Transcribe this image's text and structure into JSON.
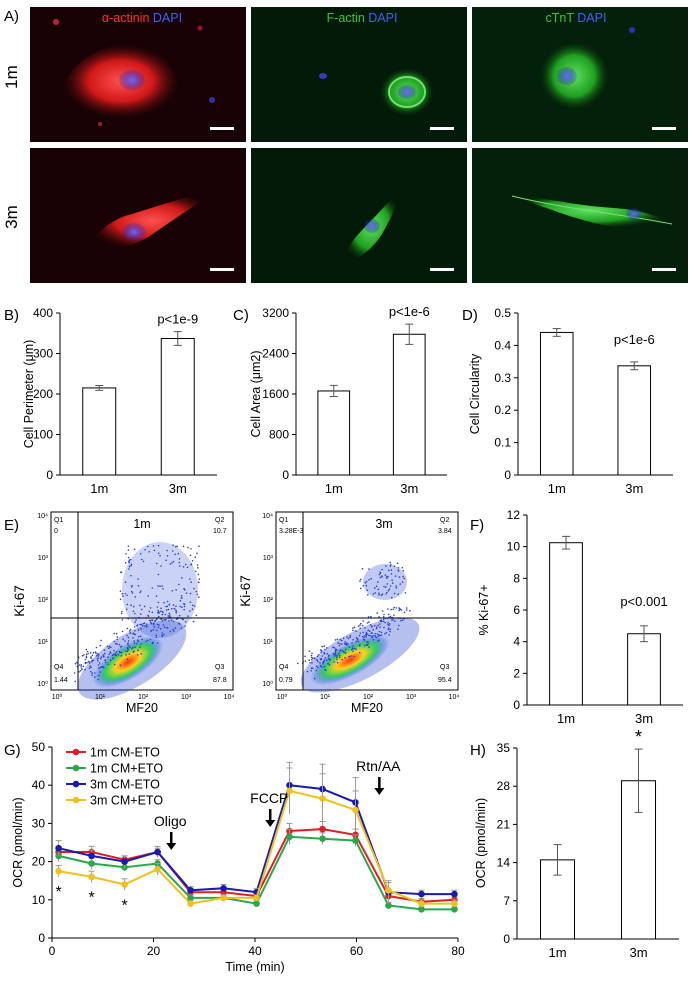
{
  "panel_A": {
    "label": "A)",
    "row_labels": [
      "1m",
      "3m"
    ],
    "columns": [
      {
        "stain": "α-actinin",
        "stain_color": "#ff3030",
        "counter": "DAPI",
        "counter_color": "#4060ff"
      },
      {
        "stain": "F-actin",
        "stain_color": "#39c43a",
        "counter": "DAPI",
        "counter_color": "#4060ff"
      },
      {
        "stain": "cTnT",
        "stain_color": "#39c43a",
        "counter": "DAPI",
        "counter_color": "#4060ff"
      }
    ]
  },
  "panel_labels": {
    "B": "B)",
    "C": "C)",
    "D": "D)",
    "E": "E)",
    "F": "F)",
    "G": "G)",
    "H": "H)"
  },
  "flow": {
    "plots": [
      {
        "title": "1m",
        "q1_label": "Q1",
        "q1": "0",
        "q2_label": "Q2",
        "q2": "10.7",
        "q3_label": "Q3",
        "q3": "87.8",
        "q4_label": "Q4",
        "q4": "1.44"
      },
      {
        "title": "3m",
        "q1_label": "Q1",
        "q1": "3.28E-3",
        "q2_label": "Q2",
        "q2": "3.84",
        "q3_label": "Q3",
        "q3": "95.4",
        "q4_label": "Q4",
        "q4": "0.79"
      }
    ],
    "xlabel": "MF20",
    "ylabel": "Ki-67",
    "decade_ticks": [
      "10⁰",
      "10¹",
      "10²",
      "10³",
      "10⁴"
    ]
  },
  "chart_data": [
    {
      "id": "B",
      "type": "bar",
      "categories": [
        "1m",
        "3m"
      ],
      "values": [
        215,
        337
      ],
      "errors": [
        6,
        17
      ],
      "ylabel": "Cell Perimeter (μm)",
      "ylim": [
        0,
        400
      ],
      "yticks": [
        "0",
        "100",
        "200",
        "300",
        "400"
      ],
      "annotations": [
        {
          "text": "p<1e-9",
          "category": "3m"
        }
      ]
    },
    {
      "id": "C",
      "type": "bar",
      "categories": [
        "1m",
        "3m"
      ],
      "values": [
        1660,
        2780
      ],
      "errors": [
        110,
        200
      ],
      "ylabel": "Cell Area (μm2)",
      "ylim": [
        0,
        3200
      ],
      "yticks": [
        "0",
        "800",
        "1600",
        "2400",
        "3200"
      ],
      "annotations": [
        {
          "text": "p<1e-6",
          "category": "3m"
        }
      ]
    },
    {
      "id": "D",
      "type": "bar",
      "categories": [
        "1m",
        "3m"
      ],
      "values": [
        0.44,
        0.337
      ],
      "errors": [
        0.012,
        0.012
      ],
      "ylabel": "Cell Circularity",
      "ylim": [
        0,
        0.5
      ],
      "yticks": [
        "0",
        "0.1",
        "0.2",
        "0.3",
        "0.4",
        "0.5"
      ],
      "annotations": [
        {
          "text": "p<1e-6",
          "category": "3m"
        }
      ]
    },
    {
      "id": "F",
      "type": "bar",
      "categories": [
        "1m",
        "3m"
      ],
      "values": [
        10.25,
        4.5
      ],
      "errors": [
        0.4,
        0.5
      ],
      "ylabel": "% Ki-67+",
      "ylim": [
        0,
        12
      ],
      "yticks": [
        "0",
        "2",
        "4",
        "6",
        "8",
        "10",
        "12"
      ],
      "annotations": [
        {
          "text": "p<0.001",
          "category": "3m"
        }
      ]
    },
    {
      "id": "G",
      "type": "line",
      "xlabel": "Time (min)",
      "ylabel": "OCR (pmol/min)",
      "xlim": [
        0,
        80
      ],
      "ylim": [
        0,
        50
      ],
      "xticks": [
        "0",
        "20",
        "40",
        "60",
        "80"
      ],
      "yticks": [
        "0",
        "10",
        "20",
        "30",
        "40",
        "50"
      ],
      "x": [
        1.3,
        7.8,
        14.3,
        20.8,
        27.3,
        33.8,
        40.3,
        46.8,
        53.3,
        59.8,
        66.3,
        72.8,
        79.3
      ],
      "series": [
        {
          "name": "1m CM-ETO",
          "color": "#e02020",
          "values": [
            22.5,
            22.5,
            20.5,
            22.5,
            12,
            12,
            11,
            28,
            28.5,
            27,
            11,
            9.5,
            10
          ],
          "errors": [
            1.5,
            1.5,
            1,
            1,
            1,
            0.8,
            0.8,
            2,
            2,
            1.5,
            1,
            0.8,
            0.8
          ]
        },
        {
          "name": "1m CM+ETO",
          "color": "#2aa84a",
          "values": [
            21.5,
            19.5,
            18.5,
            19.5,
            10.5,
            10.5,
            9,
            26.5,
            26,
            25.5,
            8.5,
            7.5,
            7.5
          ],
          "errors": [
            1.5,
            1.5,
            1,
            1,
            0.8,
            0.8,
            0.8,
            2,
            1.5,
            1.5,
            0.8,
            0.6,
            0.6
          ]
        },
        {
          "name": "3m CM-ETO",
          "color": "#1a1ab0",
          "values": [
            23.5,
            21.5,
            20,
            22.5,
            12.5,
            13,
            12,
            40,
            39,
            35.5,
            12,
            11.5,
            11.5
          ],
          "errors": [
            2,
            1.5,
            1.5,
            1.5,
            1,
            1,
            1,
            6,
            6.5,
            6.5,
            3,
            1,
            1
          ]
        },
        {
          "name": "3m CM+ETO",
          "color": "#f0c020",
          "values": [
            17.5,
            16,
            14,
            18,
            9,
            10.5,
            10.5,
            38.5,
            36.5,
            33.5,
            12.5,
            9,
            9
          ],
          "errors": [
            1.5,
            1.5,
            1.5,
            1.5,
            0.8,
            0.8,
            0.8,
            6,
            6.5,
            5,
            2,
            1,
            1
          ]
        }
      ],
      "injections": [
        {
          "text": "Oligo",
          "x": 23.5
        },
        {
          "text": "FCCP",
          "x": 43
        },
        {
          "text": "Rtn/AA",
          "x": 64.5
        }
      ],
      "significance": [
        {
          "text": "*",
          "x": 1.3
        },
        {
          "text": "*",
          "x": 7.8
        },
        {
          "text": "*",
          "x": 14.3
        }
      ]
    },
    {
      "id": "H",
      "type": "bar",
      "categories": [
        "1m",
        "3m"
      ],
      "values": [
        14.5,
        29
      ],
      "errors": [
        2.8,
        5.8
      ],
      "ylabel": "OCR (pmol/min)",
      "ylim": [
        0,
        35
      ],
      "yticks": [
        "0",
        "7",
        "14",
        "21",
        "28",
        "35"
      ],
      "annotations": [
        {
          "text": "*",
          "category": "3m"
        }
      ]
    }
  ]
}
